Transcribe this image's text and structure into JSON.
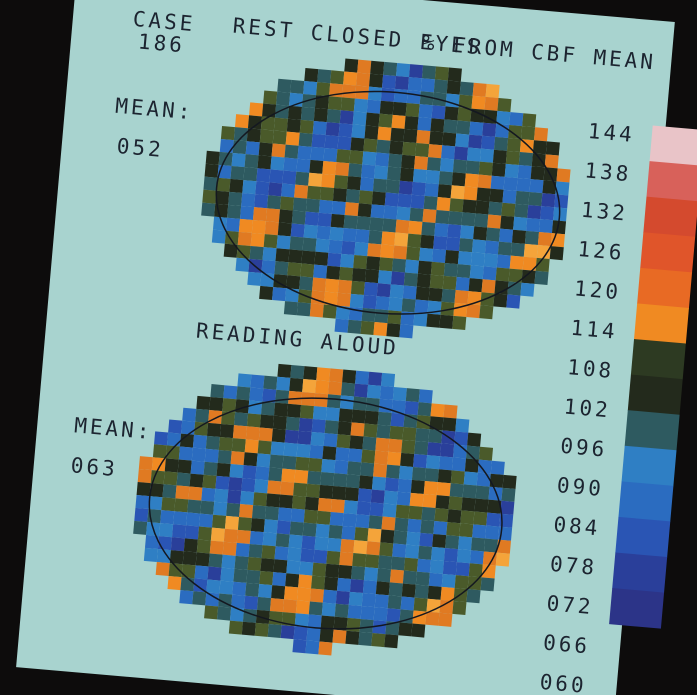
{
  "header": {
    "case_label": "CASE",
    "case_number": "186",
    "title": "% FROM CBF MEAN"
  },
  "panels": [
    {
      "condition": "REST CLOSED EYES",
      "mean_label": "MEAN:",
      "mean_value": "052"
    },
    {
      "condition": "READING ALOUD",
      "mean_label": "MEAN:",
      "mean_value": "063"
    }
  ],
  "scale": {
    "labels": [
      "144",
      "138",
      "132",
      "126",
      "120",
      "114",
      "108",
      "102",
      "096",
      "090",
      "084",
      "078",
      "072",
      "066",
      "060"
    ],
    "colors": [
      "#e9c4c8",
      "#d8615a",
      "#d44a2e",
      "#e0552a",
      "#e86a24",
      "#f08a22",
      "#2d3a22",
      "#232a1c",
      "#2e5a60",
      "#2f7fc4",
      "#2b6cc0",
      "#2a55b4",
      "#2a3f9a",
      "#2c3488"
    ]
  }
}
